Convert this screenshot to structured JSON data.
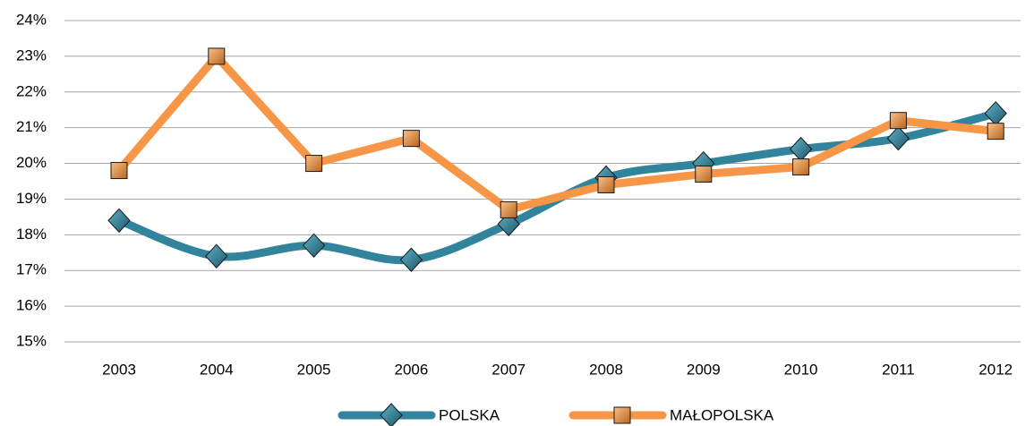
{
  "chart_data": {
    "type": "line",
    "categories": [
      "2003",
      "2004",
      "2005",
      "2006",
      "2007",
      "2008",
      "2009",
      "2010",
      "2011",
      "2012"
    ],
    "series": [
      {
        "name": "POLSKA",
        "color": "#31849b",
        "marker": "diamond",
        "smooth": true,
        "values": [
          18.4,
          17.4,
          17.7,
          17.3,
          18.3,
          19.6,
          20.0,
          20.4,
          20.7,
          21.4
        ]
      },
      {
        "name": "MAŁOPOLSKA",
        "color": "#f79646",
        "marker": "square",
        "smooth": false,
        "values": [
          19.8,
          23.0,
          20.0,
          20.7,
          18.7,
          19.4,
          19.7,
          19.9,
          21.2,
          20.9
        ]
      }
    ],
    "ylim": [
      15,
      24
    ],
    "yticks": [
      {
        "value": 15,
        "label": "15%"
      },
      {
        "value": 16,
        "label": "16%"
      },
      {
        "value": 17,
        "label": "17%"
      },
      {
        "value": 18,
        "label": "18%"
      },
      {
        "value": 19,
        "label": "19%"
      },
      {
        "value": 20,
        "label": "20%"
      },
      {
        "value": 21,
        "label": "21%"
      },
      {
        "value": 22,
        "label": "22%"
      },
      {
        "value": 23,
        "label": "23%"
      },
      {
        "value": 24,
        "label": "24%"
      }
    ],
    "grid": true,
    "legend": "bottom"
  }
}
